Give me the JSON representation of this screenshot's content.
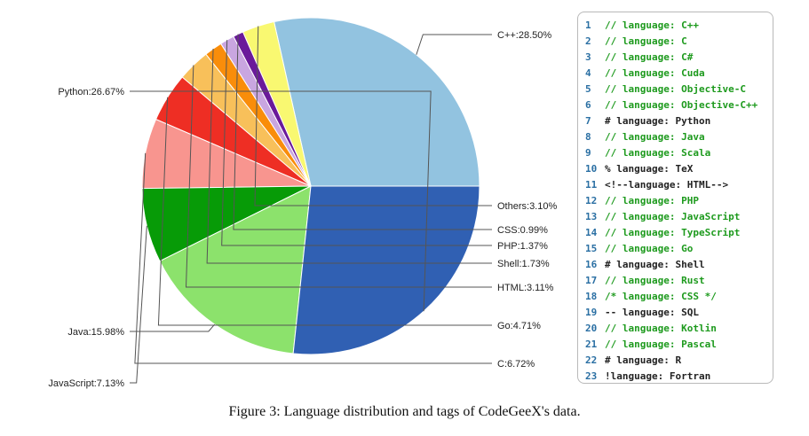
{
  "chart_data": {
    "type": "pie",
    "slices": [
      {
        "label": "C++:28.50%",
        "value": 28.5,
        "color": "#92c3e0"
      },
      {
        "label": "Others:3.10%",
        "value": 3.1,
        "color": "#f9f871"
      },
      {
        "label": "CSS:0.99%",
        "value": 0.99,
        "color": "#6a1a9a"
      },
      {
        "label": "PHP:1.37%",
        "value": 1.37,
        "color": "#c9a6e0"
      },
      {
        "label": "Shell:1.73%",
        "value": 1.73,
        "color": "#f98d0a"
      },
      {
        "label": "HTML:3.11%",
        "value": 3.11,
        "color": "#f8c05a"
      },
      {
        "label": "Go:4.71%",
        "value": 4.71,
        "color": "#ee2e24"
      },
      {
        "label": "C:6.72%",
        "value": 6.72,
        "color": "#f8958f"
      },
      {
        "label": "JavaScript:7.13%",
        "value": 7.13,
        "color": "#079b07"
      },
      {
        "label": "Java:15.98%",
        "value": 15.98,
        "color": "#8ce26c"
      },
      {
        "label": "Python:26.67%",
        "value": 26.67,
        "color": "#3060b3"
      }
    ]
  },
  "code_panel": {
    "lines": [
      {
        "n": "1",
        "text": "// language: C++",
        "color": "#1d9a1d"
      },
      {
        "n": "2",
        "text": "// language: C",
        "color": "#1d9a1d"
      },
      {
        "n": "3",
        "text": "// language: C#",
        "color": "#1d9a1d"
      },
      {
        "n": "4",
        "text": "// language: Cuda",
        "color": "#1d9a1d"
      },
      {
        "n": "5",
        "text": "// language: Objective-C",
        "color": "#1d9a1d"
      },
      {
        "n": "6",
        "text": "// language: Objective-C++",
        "color": "#1d9a1d"
      },
      {
        "n": "7",
        "text": "# language: Python",
        "color": "#222222"
      },
      {
        "n": "8",
        "text": "// language: Java",
        "color": "#1d9a1d"
      },
      {
        "n": "9",
        "text": "// language: Scala",
        "color": "#1d9a1d"
      },
      {
        "n": "10",
        "text": "% language: TeX",
        "color": "#222222"
      },
      {
        "n": "11",
        "text": "<!--language: HTML-->",
        "color": "#222222"
      },
      {
        "n": "12",
        "text": "// language: PHP",
        "color": "#1d9a1d"
      },
      {
        "n": "13",
        "text": "// language: JavaScript",
        "color": "#1d9a1d"
      },
      {
        "n": "14",
        "text": "// language: TypeScript",
        "color": "#1d9a1d"
      },
      {
        "n": "15",
        "text": "// language: Go",
        "color": "#1d9a1d"
      },
      {
        "n": "16",
        "text": "# language: Shell",
        "color": "#222222"
      },
      {
        "n": "17",
        "text": "// language: Rust",
        "color": "#1d9a1d"
      },
      {
        "n": "18",
        "text": "/* language: CSS */",
        "color": "#1d9a1d"
      },
      {
        "n": "19",
        "text": "-- language: SQL",
        "color": "#222222"
      },
      {
        "n": "20",
        "text": "// language: Kotlin",
        "color": "#1d9a1d"
      },
      {
        "n": "21",
        "text": "// language: Pascal",
        "color": "#1d9a1d"
      },
      {
        "n": "22",
        "text": "# language: R",
        "color": "#222222"
      },
      {
        "n": "23",
        "text": "!language: Fortran",
        "color": "#222222"
      }
    ]
  },
  "caption": "Figure 3: Language distribution and tags of CodeGeeX's data."
}
